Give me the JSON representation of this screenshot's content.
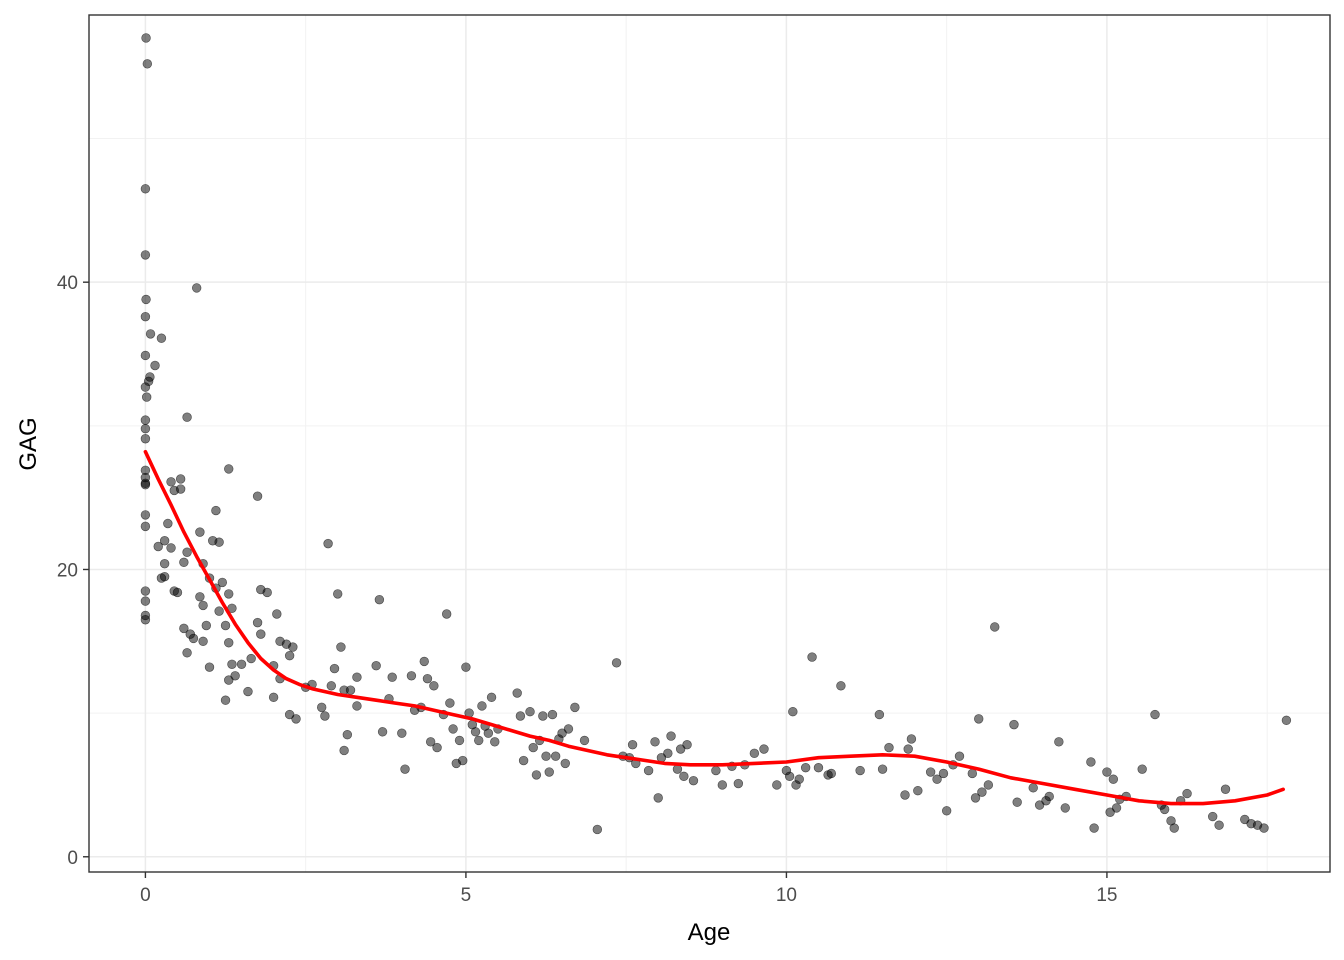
{
  "chart_data": {
    "type": "scatter",
    "title": "",
    "xlabel": "Age",
    "ylabel": "GAG",
    "xlim": [
      -0.88,
      18.48
    ],
    "ylim": [
      -1.06,
      58.6
    ],
    "xticks": [
      0,
      5,
      10,
      15
    ],
    "yticks": [
      0,
      20,
      40
    ],
    "grid": true,
    "legend": "none",
    "point_color": "#000000",
    "point_opacity": 0.5,
    "line_color": "#ff0000",
    "points": [
      [
        0.01,
        57.0
      ],
      [
        0.03,
        55.2
      ],
      [
        0.0,
        46.5
      ],
      [
        0.0,
        41.9
      ],
      [
        0.01,
        38.8
      ],
      [
        0.0,
        37.6
      ],
      [
        0.08,
        36.4
      ],
      [
        0.25,
        36.1
      ],
      [
        0.0,
        34.9
      ],
      [
        0.15,
        34.2
      ],
      [
        0.07,
        33.4
      ],
      [
        0.05,
        33.1
      ],
      [
        0.0,
        32.7
      ],
      [
        0.02,
        32.0
      ],
      [
        0.0,
        30.4
      ],
      [
        0.0,
        29.8
      ],
      [
        0.0,
        29.1
      ],
      [
        0.0,
        26.9
      ],
      [
        0.0,
        26.4
      ],
      [
        0.0,
        26.0
      ],
      [
        0.0,
        25.9
      ],
      [
        0.0,
        23.8
      ],
      [
        0.0,
        23.0
      ],
      [
        0.0,
        18.5
      ],
      [
        0.0,
        17.8
      ],
      [
        0.0,
        16.8
      ],
      [
        0.0,
        16.5
      ],
      [
        0.2,
        21.6
      ],
      [
        0.3,
        20.4
      ],
      [
        0.35,
        23.2
      ],
      [
        0.3,
        22.0
      ],
      [
        0.25,
        19.4
      ],
      [
        0.3,
        19.5
      ],
      [
        0.4,
        21.5
      ],
      [
        0.45,
        18.5
      ],
      [
        0.5,
        18.4
      ],
      [
        0.4,
        26.1
      ],
      [
        0.45,
        25.5
      ],
      [
        0.55,
        26.3
      ],
      [
        0.55,
        25.6
      ],
      [
        0.6,
        20.5
      ],
      [
        0.65,
        21.2
      ],
      [
        0.6,
        15.9
      ],
      [
        0.7,
        15.5
      ],
      [
        0.75,
        15.2
      ],
      [
        0.65,
        14.2
      ],
      [
        0.65,
        30.6
      ],
      [
        0.8,
        39.6
      ],
      [
        0.85,
        22.6
      ],
      [
        0.9,
        20.4
      ],
      [
        0.85,
        18.1
      ],
      [
        0.9,
        17.5
      ],
      [
        0.95,
        16.1
      ],
      [
        0.9,
        15.0
      ],
      [
        1.0,
        13.2
      ],
      [
        1.05,
        22.0
      ],
      [
        1.1,
        24.1
      ],
      [
        1.15,
        21.9
      ],
      [
        1.0,
        19.4
      ],
      [
        1.1,
        18.7
      ],
      [
        1.2,
        19.1
      ],
      [
        1.15,
        17.1
      ],
      [
        1.25,
        16.1
      ],
      [
        1.3,
        14.9
      ],
      [
        1.3,
        12.3
      ],
      [
        1.25,
        10.9
      ],
      [
        1.35,
        13.4
      ],
      [
        1.4,
        12.6
      ],
      [
        1.3,
        18.3
      ],
      [
        1.35,
        17.3
      ],
      [
        1.3,
        27.0
      ],
      [
        1.75,
        25.1
      ],
      [
        1.8,
        18.6
      ],
      [
        1.9,
        18.4
      ],
      [
        1.75,
        16.3
      ],
      [
        1.8,
        15.5
      ],
      [
        1.65,
        13.8
      ],
      [
        1.6,
        11.5
      ],
      [
        1.5,
        13.4
      ],
      [
        2.05,
        16.9
      ],
      [
        2.1,
        15.0
      ],
      [
        2.2,
        14.8
      ],
      [
        2.25,
        14.0
      ],
      [
        2.3,
        14.6
      ],
      [
        2.0,
        13.3
      ],
      [
        2.1,
        12.4
      ],
      [
        2.0,
        11.1
      ],
      [
        2.25,
        9.9
      ],
      [
        2.35,
        9.6
      ],
      [
        2.5,
        11.8
      ],
      [
        2.6,
        12.0
      ],
      [
        2.75,
        10.4
      ],
      [
        2.8,
        9.8
      ],
      [
        2.85,
        21.8
      ],
      [
        2.95,
        13.1
      ],
      [
        2.9,
        11.9
      ],
      [
        3.0,
        18.3
      ],
      [
        3.05,
        14.6
      ],
      [
        3.1,
        11.6
      ],
      [
        3.2,
        11.6
      ],
      [
        3.15,
        8.5
      ],
      [
        3.1,
        7.4
      ],
      [
        3.3,
        12.5
      ],
      [
        3.3,
        10.5
      ],
      [
        3.6,
        13.3
      ],
      [
        3.65,
        17.9
      ],
      [
        3.7,
        8.7
      ],
      [
        3.8,
        11.0
      ],
      [
        3.85,
        12.5
      ],
      [
        4.0,
        8.6
      ],
      [
        4.05,
        6.1
      ],
      [
        4.15,
        12.6
      ],
      [
        4.2,
        10.2
      ],
      [
        4.3,
        10.4
      ],
      [
        4.35,
        13.6
      ],
      [
        4.4,
        12.4
      ],
      [
        4.45,
        8.0
      ],
      [
        4.5,
        11.9
      ],
      [
        4.55,
        7.6
      ],
      [
        4.65,
        9.9
      ],
      [
        4.7,
        16.9
      ],
      [
        4.75,
        10.7
      ],
      [
        4.8,
        8.9
      ],
      [
        4.85,
        6.5
      ],
      [
        4.9,
        8.1
      ],
      [
        4.95,
        6.7
      ],
      [
        5.0,
        13.2
      ],
      [
        5.05,
        10.0
      ],
      [
        5.1,
        9.2
      ],
      [
        5.15,
        8.7
      ],
      [
        5.2,
        8.1
      ],
      [
        5.25,
        10.5
      ],
      [
        5.3,
        9.1
      ],
      [
        5.35,
        8.6
      ],
      [
        5.4,
        11.1
      ],
      [
        5.45,
        8.0
      ],
      [
        5.5,
        8.9
      ],
      [
        5.8,
        11.4
      ],
      [
        5.85,
        9.8
      ],
      [
        5.9,
        6.7
      ],
      [
        6.0,
        10.1
      ],
      [
        6.05,
        7.6
      ],
      [
        6.1,
        5.7
      ],
      [
        6.15,
        8.1
      ],
      [
        6.2,
        9.8
      ],
      [
        6.25,
        7.0
      ],
      [
        6.3,
        5.9
      ],
      [
        6.35,
        9.9
      ],
      [
        6.4,
        7.0
      ],
      [
        6.45,
        8.2
      ],
      [
        6.5,
        8.6
      ],
      [
        6.55,
        6.5
      ],
      [
        6.6,
        8.9
      ],
      [
        6.7,
        10.4
      ],
      [
        6.85,
        8.1
      ],
      [
        7.05,
        1.9
      ],
      [
        7.35,
        13.5
      ],
      [
        7.45,
        7.0
      ],
      [
        7.55,
        6.9
      ],
      [
        7.6,
        7.8
      ],
      [
        7.65,
        6.5
      ],
      [
        7.85,
        6.0
      ],
      [
        7.95,
        8.0
      ],
      [
        8.0,
        4.1
      ],
      [
        8.05,
        6.9
      ],
      [
        8.15,
        7.2
      ],
      [
        8.2,
        8.4
      ],
      [
        8.3,
        6.1
      ],
      [
        8.35,
        7.5
      ],
      [
        8.4,
        5.6
      ],
      [
        8.45,
        7.8
      ],
      [
        8.55,
        5.3
      ],
      [
        8.9,
        6.0
      ],
      [
        9.0,
        5.0
      ],
      [
        9.15,
        6.3
      ],
      [
        9.25,
        5.1
      ],
      [
        9.35,
        6.4
      ],
      [
        9.5,
        7.2
      ],
      [
        9.65,
        7.5
      ],
      [
        9.85,
        5.0
      ],
      [
        10.0,
        6.0
      ],
      [
        10.05,
        5.6
      ],
      [
        10.1,
        10.1
      ],
      [
        10.15,
        5.0
      ],
      [
        10.2,
        5.4
      ],
      [
        10.3,
        6.2
      ],
      [
        10.4,
        13.9
      ],
      [
        10.5,
        6.2
      ],
      [
        10.65,
        5.7
      ],
      [
        10.7,
        5.8
      ],
      [
        10.85,
        11.9
      ],
      [
        11.15,
        6.0
      ],
      [
        11.45,
        9.9
      ],
      [
        11.5,
        6.1
      ],
      [
        11.6,
        7.6
      ],
      [
        11.85,
        4.3
      ],
      [
        11.9,
        7.5
      ],
      [
        11.95,
        8.2
      ],
      [
        12.05,
        4.6
      ],
      [
        12.25,
        5.9
      ],
      [
        12.35,
        5.4
      ],
      [
        12.45,
        5.8
      ],
      [
        12.5,
        3.2
      ],
      [
        12.6,
        6.4
      ],
      [
        12.7,
        7.0
      ],
      [
        12.9,
        5.8
      ],
      [
        12.95,
        4.1
      ],
      [
        13.0,
        9.6
      ],
      [
        13.05,
        4.5
      ],
      [
        13.15,
        5.0
      ],
      [
        13.25,
        16.0
      ],
      [
        13.55,
        9.2
      ],
      [
        13.6,
        3.8
      ],
      [
        13.85,
        4.8
      ],
      [
        13.95,
        3.6
      ],
      [
        14.05,
        3.9
      ],
      [
        14.1,
        4.2
      ],
      [
        14.25,
        8.0
      ],
      [
        14.35,
        3.4
      ],
      [
        14.75,
        6.6
      ],
      [
        14.8,
        2.0
      ],
      [
        15.0,
        5.9
      ],
      [
        15.05,
        3.1
      ],
      [
        15.1,
        5.4
      ],
      [
        15.15,
        3.4
      ],
      [
        15.2,
        4.0
      ],
      [
        15.3,
        4.2
      ],
      [
        15.55,
        6.1
      ],
      [
        15.75,
        9.9
      ],
      [
        15.85,
        3.6
      ],
      [
        15.9,
        3.3
      ],
      [
        16.0,
        2.5
      ],
      [
        16.05,
        2.0
      ],
      [
        16.15,
        3.9
      ],
      [
        16.25,
        4.4
      ],
      [
        16.65,
        2.8
      ],
      [
        16.75,
        2.2
      ],
      [
        16.85,
        4.7
      ],
      [
        17.15,
        2.6
      ],
      [
        17.25,
        2.3
      ],
      [
        17.35,
        2.2
      ],
      [
        17.45,
        2.0
      ],
      [
        17.8,
        9.5
      ]
    ],
    "smooth_line": [
      [
        0.0,
        28.2
      ],
      [
        0.2,
        26.3
      ],
      [
        0.4,
        24.5
      ],
      [
        0.6,
        22.6
      ],
      [
        0.8,
        20.9
      ],
      [
        1.0,
        19.3
      ],
      [
        1.2,
        17.7
      ],
      [
        1.4,
        16.2
      ],
      [
        1.6,
        14.9
      ],
      [
        1.8,
        13.8
      ],
      [
        2.0,
        13.0
      ],
      [
        2.2,
        12.4
      ],
      [
        2.4,
        12.0
      ],
      [
        2.6,
        11.7
      ],
      [
        2.8,
        11.5
      ],
      [
        3.0,
        11.3
      ],
      [
        3.3,
        11.1
      ],
      [
        3.6,
        10.9
      ],
      [
        3.9,
        10.7
      ],
      [
        4.2,
        10.5
      ],
      [
        4.5,
        10.2
      ],
      [
        4.8,
        9.9
      ],
      [
        5.1,
        9.6
      ],
      [
        5.4,
        9.2
      ],
      [
        5.7,
        8.8
      ],
      [
        6.0,
        8.4
      ],
      [
        6.3,
        8.1
      ],
      [
        6.6,
        7.7
      ],
      [
        6.9,
        7.4
      ],
      [
        7.2,
        7.1
      ],
      [
        7.5,
        6.9
      ],
      [
        7.8,
        6.7
      ],
      [
        8.1,
        6.5
      ],
      [
        8.5,
        6.4
      ],
      [
        9.0,
        6.4
      ],
      [
        9.5,
        6.5
      ],
      [
        10.0,
        6.6
      ],
      [
        10.5,
        6.9
      ],
      [
        11.0,
        7.0
      ],
      [
        11.5,
        7.1
      ],
      [
        12.0,
        7.0
      ],
      [
        12.5,
        6.6
      ],
      [
        13.0,
        6.1
      ],
      [
        13.5,
        5.5
      ],
      [
        14.0,
        5.1
      ],
      [
        14.5,
        4.7
      ],
      [
        15.0,
        4.3
      ],
      [
        15.5,
        3.9
      ],
      [
        16.0,
        3.7
      ],
      [
        16.5,
        3.7
      ],
      [
        17.0,
        3.9
      ],
      [
        17.5,
        4.3
      ],
      [
        17.75,
        4.7
      ]
    ]
  }
}
